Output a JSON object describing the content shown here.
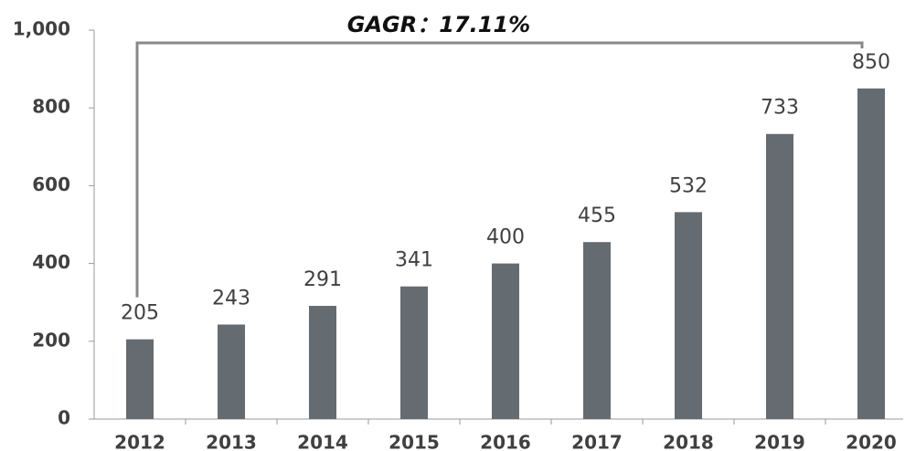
{
  "chart_data": {
    "type": "bar",
    "annotation": "GAGR：17.11%",
    "categories": [
      "2012",
      "2013",
      "2014",
      "2015",
      "2016",
      "2017",
      "2018",
      "2019",
      "2020"
    ],
    "values": [
      205,
      243,
      291,
      341,
      400,
      455,
      532,
      733,
      850
    ],
    "color": "#656c71",
    "ylim": [
      0,
      1000
    ],
    "yticks": [
      0,
      200,
      400,
      600,
      800,
      {
        "value": 1000,
        "label": "1,000"
      }
    ],
    "grid": false
  }
}
